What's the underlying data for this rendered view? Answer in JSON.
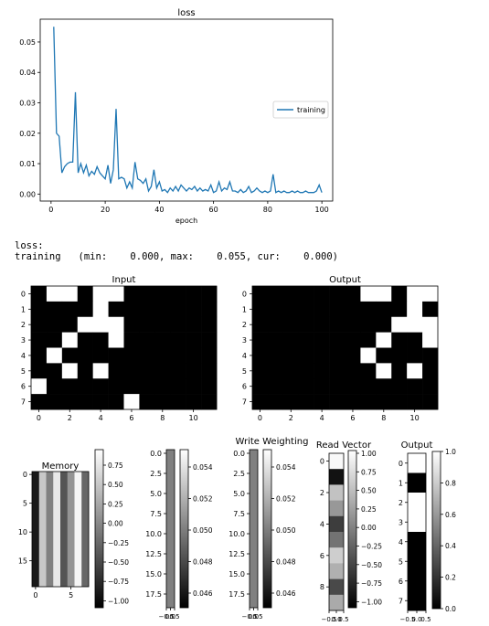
{
  "chart_data": [
    {
      "type": "line",
      "title": "loss",
      "xlabel": "epoch",
      "ylabel": "",
      "xlim": [
        -4,
        104
      ],
      "ylim": [
        -0.0023,
        0.0575
      ],
      "xticks": [
        0,
        20,
        40,
        60,
        80,
        100
      ],
      "yticks": [
        0.0,
        0.01,
        0.02,
        0.03,
        0.04,
        0.05
      ],
      "ytick_labels": [
        "0.00",
        "0.01",
        "0.02",
        "0.03",
        "0.04",
        "0.05"
      ],
      "legend": "center-right",
      "series": [
        {
          "name": "training",
          "color": "#1f77b4",
          "x": [
            1,
            2,
            3,
            4,
            5,
            6,
            7,
            8,
            9,
            10,
            11,
            12,
            13,
            14,
            15,
            16,
            17,
            18,
            19,
            20,
            21,
            22,
            23,
            24,
            25,
            26,
            27,
            28,
            29,
            30,
            31,
            32,
            33,
            34,
            35,
            36,
            37,
            38,
            39,
            40,
            41,
            42,
            43,
            44,
            45,
            46,
            47,
            48,
            49,
            50,
            51,
            52,
            53,
            54,
            55,
            56,
            57,
            58,
            59,
            60,
            61,
            62,
            63,
            64,
            65,
            66,
            67,
            68,
            69,
            70,
            71,
            72,
            73,
            74,
            75,
            76,
            77,
            78,
            79,
            80,
            81,
            82,
            83,
            84,
            85,
            86,
            87,
            88,
            89,
            90,
            91,
            92,
            93,
            94,
            95,
            96,
            97,
            98,
            99,
            100
          ],
          "values": [
            0.055,
            0.02,
            0.019,
            0.007,
            0.009,
            0.01,
            0.0105,
            0.0105,
            0.0335,
            0.007,
            0.01,
            0.007,
            0.0095,
            0.006,
            0.0075,
            0.0065,
            0.009,
            0.007,
            0.006,
            0.005,
            0.0095,
            0.0035,
            0.008,
            0.028,
            0.005,
            0.0055,
            0.005,
            0.002,
            0.004,
            0.002,
            0.0105,
            0.005,
            0.0045,
            0.0035,
            0.005,
            0.001,
            0.0025,
            0.008,
            0.002,
            0.004,
            0.001,
            0.0015,
            0.0005,
            0.002,
            0.001,
            0.0025,
            0.001,
            0.003,
            0.002,
            0.001,
            0.002,
            0.0015,
            0.0025,
            0.001,
            0.002,
            0.001,
            0.0015,
            0.001,
            0.003,
            0.0005,
            0.001,
            0.004,
            0.001,
            0.002,
            0.0015,
            0.004,
            0.001,
            0.001,
            0.0005,
            0.0015,
            0.0005,
            0.001,
            0.0025,
            0.0005,
            0.001,
            0.002,
            0.001,
            0.0005,
            0.001,
            0.0005,
            0.001,
            0.0065,
            0.0005,
            0.001,
            0.0005,
            0.001,
            0.0005,
            0.0005,
            0.001,
            0.0005,
            0.001,
            0.0005,
            0.0005,
            0.001,
            0.0005,
            0.0005,
            0.0005,
            0.001,
            0.003,
            0.0005
          ]
        }
      ]
    },
    {
      "type": "heatmap",
      "title": "Input",
      "cmap": "gray",
      "xticks": [
        0,
        2,
        4,
        6,
        8,
        10
      ],
      "yticks": [
        0,
        1,
        2,
        3,
        4,
        5,
        6,
        7
      ],
      "matrix": [
        [
          0,
          1,
          1,
          0,
          1,
          1,
          0,
          0,
          0,
          0,
          0,
          0
        ],
        [
          0,
          0,
          0,
          0,
          1,
          0,
          0,
          0,
          0,
          0,
          0,
          0
        ],
        [
          0,
          0,
          0,
          1,
          1,
          1,
          0,
          0,
          0,
          0,
          0,
          0
        ],
        [
          0,
          0,
          1,
          0,
          0,
          1,
          0,
          0,
          0,
          0,
          0,
          0
        ],
        [
          0,
          1,
          0,
          0,
          0,
          0,
          0,
          0,
          0,
          0,
          0,
          0
        ],
        [
          0,
          0,
          1,
          0,
          1,
          0,
          0,
          0,
          0,
          0,
          0,
          0
        ],
        [
          1,
          0,
          0,
          0,
          0,
          0,
          0,
          0,
          0,
          0,
          0,
          0
        ],
        [
          0,
          0,
          0,
          0,
          0,
          0,
          1,
          0,
          0,
          0,
          0,
          0
        ]
      ]
    },
    {
      "type": "heatmap",
      "title": "Output",
      "cmap": "gray",
      "xticks": [
        0,
        2,
        4,
        6,
        8,
        10
      ],
      "yticks": [
        0,
        1,
        2,
        3,
        4,
        5,
        6,
        7
      ],
      "matrix": [
        [
          0,
          0,
          0,
          0,
          0,
          0,
          0,
          1,
          1,
          0,
          1,
          1
        ],
        [
          0,
          0,
          0,
          0,
          0,
          0,
          0,
          0,
          0,
          0,
          1,
          0
        ],
        [
          0,
          0,
          0,
          0,
          0,
          0,
          0,
          0,
          0,
          1,
          1,
          1
        ],
        [
          0,
          0,
          0,
          0,
          0,
          0,
          0,
          0,
          1,
          0,
          0,
          1
        ],
        [
          0,
          0,
          0,
          0,
          0,
          0,
          0,
          1,
          0,
          0,
          0,
          0
        ],
        [
          0,
          0,
          0,
          0,
          0,
          0,
          0,
          0,
          1,
          0,
          1,
          0
        ],
        [
          0,
          0,
          0,
          0,
          0,
          0,
          0,
          0,
          0,
          0,
          0,
          0
        ],
        [
          0,
          0,
          0,
          0,
          0,
          0,
          0,
          0,
          0,
          0,
          0,
          0
        ]
      ]
    },
    {
      "type": "heatmap",
      "title": "Memory",
      "cmap": "gray",
      "xticks": [
        0,
        5
      ],
      "yticks": [
        0,
        5,
        10,
        15
      ],
      "columns": [
        -0.9,
        0.45,
        -0.1,
        0.7,
        -0.45,
        0.05,
        0.8,
        -0.3
      ],
      "colorbar_ticks": [
        "0.75",
        "0.50",
        "0.25",
        "0.00",
        "−0.25",
        "−0.50",
        "−0.75",
        "−1.00"
      ]
    },
    {
      "type": "heatmap",
      "title": "",
      "cmap": "gray",
      "xtick_labels": [
        "−0.5",
        "0.0",
        "0.5"
      ],
      "yticks": [
        "0.0",
        "2.5",
        "5.0",
        "7.5",
        "10.0",
        "12.5",
        "15.0",
        "17.5"
      ],
      "value": 0.5,
      "colorbar_ticks": [
        "0.054",
        "0.052",
        "0.050",
        "0.048",
        "0.046"
      ]
    },
    {
      "type": "heatmap",
      "title": "Write Weighting",
      "cmap": "gray",
      "xtick_labels": [
        "−0.5",
        "0.0",
        "0.5"
      ],
      "yticks": [
        "0.0",
        "2.5",
        "5.0",
        "7.5",
        "10.0",
        "12.5",
        "15.0",
        "17.5"
      ],
      "value": 0.5,
      "colorbar_ticks": [
        "0.054",
        "0.052",
        "0.050",
        "0.048",
        "0.046"
      ]
    },
    {
      "type": "heatmap",
      "title": "Read Vector",
      "cmap": "gray",
      "xtick_labels": [
        "−0.5",
        "0.0",
        "0.5"
      ],
      "yticks": [
        "0",
        "2",
        "4",
        "6",
        "8"
      ],
      "rows": [
        1.0,
        -0.9,
        0.55,
        0.2,
        -0.55,
        -0.1,
        0.65,
        0.4,
        -0.45,
        0.35
      ],
      "colorbar_ticks": [
        "1.00",
        "0.75",
        "0.50",
        "0.25",
        "0.00",
        "−0.25",
        "−0.50",
        "−0.75",
        "−1.00"
      ]
    },
    {
      "type": "heatmap",
      "title": "Output",
      "cmap": "gray",
      "xtick_labels": [
        "−0.5",
        "0.0",
        "0.5"
      ],
      "yticks": [
        "0",
        "1",
        "2",
        "3",
        "4",
        "5",
        "6",
        "7"
      ],
      "rows": [
        1,
        0,
        1,
        1,
        0,
        0,
        0,
        0
      ],
      "colorbar_ticks": [
        "1.0",
        "0.8",
        "0.6",
        "0.4",
        "0.2",
        "0.0"
      ]
    }
  ],
  "log_text": {
    "line1": "loss:",
    "line2": "training   (min:    0.000, max:    0.055, cur:    0.000)"
  }
}
